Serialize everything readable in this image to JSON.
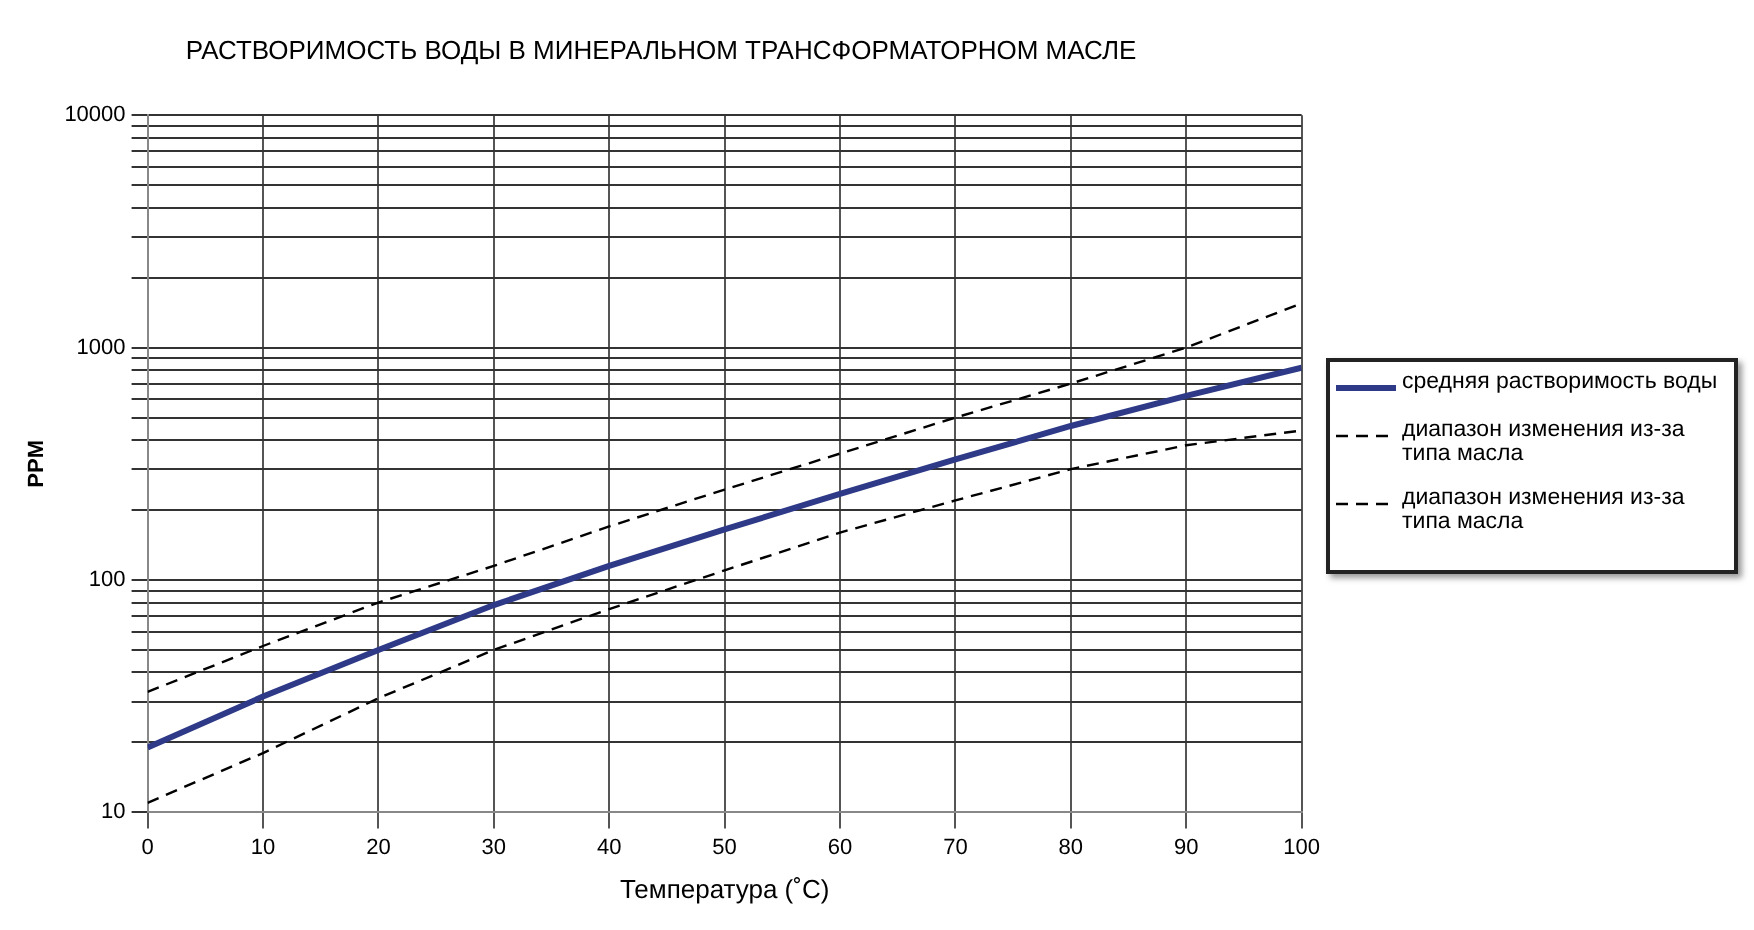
{
  "chart_data": {
    "type": "line",
    "title": "РАСТВОРИМОСТЬ ВОДЫ В МИНЕРАЛЬНОМ ТРАНСФОРМАТОРНОМ МАСЛЕ",
    "xlabel": "Температура (˚C)",
    "ylabel": "PPM",
    "x": [
      0,
      10,
      20,
      30,
      40,
      50,
      60,
      70,
      80,
      90,
      100
    ],
    "series": [
      {
        "name": "средняя растворимость воды",
        "color": "#2e3a87",
        "line_style": "solid",
        "values": [
          19,
          31.5,
          50,
          78,
          115,
          165,
          235,
          330,
          460,
          620,
          820
        ]
      },
      {
        "name": "диапазон изменения из-за типа масла",
        "color": "#000000",
        "line_style": "dashed",
        "values": [
          33,
          52,
          80,
          115,
          170,
          245,
          350,
          500,
          700,
          1000,
          1550
        ]
      },
      {
        "name": "диапазон изменения из-за типа масла",
        "color": "#000000",
        "line_style": "dashed",
        "values": [
          11,
          18,
          31,
          50,
          75,
          110,
          160,
          220,
          300,
          380,
          440
        ]
      }
    ],
    "xlim": [
      0,
      100
    ],
    "xticks": [
      0,
      10,
      20,
      30,
      40,
      50,
      60,
      70,
      80,
      90,
      100
    ],
    "ylim": [
      10,
      10000
    ],
    "yticks": [
      10,
      {
        "value": 20,
        "label": null
      },
      {
        "value": 30,
        "label": null
      },
      {
        "value": 40,
        "label": null
      },
      {
        "value": 50,
        "label": null
      },
      {
        "value": 60,
        "label": null
      },
      {
        "value": 70,
        "label": null
      },
      {
        "value": 80,
        "label": null
      },
      {
        "value": 90,
        "label": null
      },
      100,
      {
        "value": 200,
        "label": null
      },
      {
        "value": 300,
        "label": null
      },
      {
        "value": 400,
        "label": null
      },
      {
        "value": 500,
        "label": null
      },
      {
        "value": 600,
        "label": null
      },
      {
        "value": 700,
        "label": null
      },
      {
        "value": 800,
        "label": null
      },
      {
        "value": 900,
        "label": null
      },
      1000,
      {
        "value": 2000,
        "label": null
      },
      {
        "value": 3000,
        "label": null
      },
      {
        "value": 4000,
        "label": null
      },
      {
        "value": 5000,
        "label": null
      },
      {
        "value": 6000,
        "label": null
      },
      {
        "value": 7000,
        "label": null
      },
      {
        "value": 8000,
        "label": null
      },
      {
        "value": 9000,
        "label": null
      },
      10000
    ],
    "log": "y",
    "grid": true,
    "legend": "right",
    "marker": "none"
  }
}
